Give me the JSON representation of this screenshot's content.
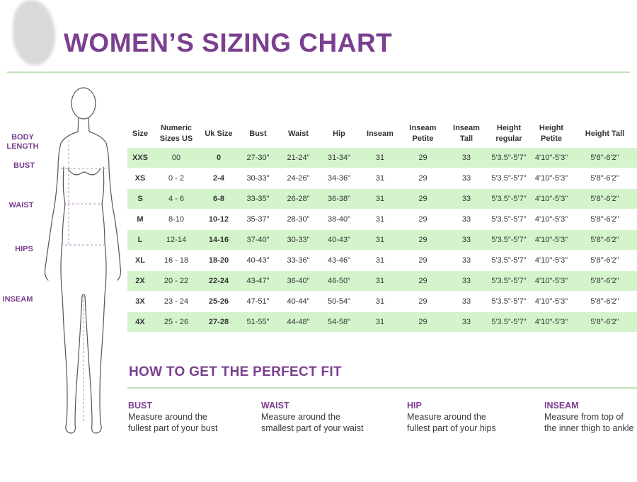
{
  "title": "WOMEN’S SIZING CHART",
  "body_labels": [
    {
      "key": "body_length",
      "text": "BODY\nLENGTH"
    },
    {
      "key": "bust",
      "text": "BUST"
    },
    {
      "key": "waist",
      "text": "WAIST"
    },
    {
      "key": "hips",
      "text": "HIPS"
    },
    {
      "key": "inseam",
      "text": "INSEAM"
    }
  ],
  "table": {
    "headers": [
      "Size",
      "Numeric Sizes US",
      "Uk Size",
      "Bust",
      "Waist",
      "Hip",
      "Inseam",
      "Inseam Petite",
      "Inseam Tall",
      "Height regular",
      "Height Petite",
      "Height Tall"
    ],
    "rows": [
      [
        "XXS",
        "00",
        "0",
        "27-30\"",
        "21-24\"",
        "31-34\"",
        "31",
        "29",
        "33",
        "5'3.5\"-5'7\"",
        "4'10\"-5'3\"",
        "5'8\"-6'2\""
      ],
      [
        "XS",
        "0 - 2",
        "2-4",
        "30-33\"",
        "24-26\"",
        "34-36\"",
        "31",
        "29",
        "33",
        "5'3.5\"-5'7\"",
        "4'10\"-5'3\"",
        "5'8\"-6'2\""
      ],
      [
        "S",
        "4 - 6",
        "6-8",
        "33-35\"",
        "26-28\"",
        "36-38\"",
        "31",
        "29",
        "33",
        "5'3.5\"-5'7\"",
        "4'10\"-5'3\"",
        "5'8\"-6'2\""
      ],
      [
        "M",
        "8-10",
        "10-12",
        "35-37\"",
        "28-30\"",
        "38-40\"",
        "31",
        "29",
        "33",
        "5'3.5\"-5'7\"",
        "4'10\"-5'3\"",
        "5'8\"-6'2\""
      ],
      [
        "L",
        "12-14",
        "14-16",
        "37-40\"",
        "30-33\"",
        "40-43\"",
        "31",
        "29",
        "33",
        "5'3.5\"-5'7\"",
        "4'10\"-5'3\"",
        "5'8\"-6'2\""
      ],
      [
        "XL",
        "16 - 18",
        "18-20",
        "40-43\"",
        "33-36\"",
        "43-46\"",
        "31",
        "29",
        "33",
        "5'3.5\"-5'7\"",
        "4'10\"-5'3\"",
        "5'8\"-6'2\""
      ],
      [
        "2X",
        "20 - 22",
        "22-24",
        "43-47\"",
        "36-40\"",
        "46-50\"",
        "31",
        "29",
        "33",
        "5'3.5\"-5'7\"",
        "4'10\"-5'3\"",
        "5'8\"-6'2\""
      ],
      [
        "3X",
        "23 - 24",
        "25-26",
        "47-51\"",
        "40-44\"",
        "50-54\"",
        "31",
        "29",
        "33",
        "5'3.5\"-5'7\"",
        "4'10\"-5'3\"",
        "5'8\"-6'2\""
      ],
      [
        "4X",
        "25 - 26",
        "27-28",
        "51-55\"",
        "44-48\"",
        "54-58\"",
        "31",
        "29",
        "33",
        "5'3.5\"-5'7\"",
        "4'10\"-5'3\"",
        "5'8\"-6'2\""
      ]
    ]
  },
  "fit": {
    "title": "HOW TO GET THE PERFECT FIT",
    "tips": [
      {
        "heading": "BUST",
        "line1": "Measure around the",
        "line2": "fullest part of your bust"
      },
      {
        "heading": "WAIST",
        "line1": "Measure around the",
        "line2": "smallest part of your waist"
      },
      {
        "heading": "HIP",
        "line1": "Measure around the",
        "line2": "fullest part of your hips"
      },
      {
        "heading": "INSEAM",
        "line1": "Measure from top of",
        "line2": "the inner thigh to ankle"
      }
    ]
  },
  "colors": {
    "accent": "#7b3f8f",
    "row_green": "#d4f5cc",
    "rule_green": "#bfe3b4"
  },
  "icons": {
    "figure": "female-body-outline-icon"
  }
}
